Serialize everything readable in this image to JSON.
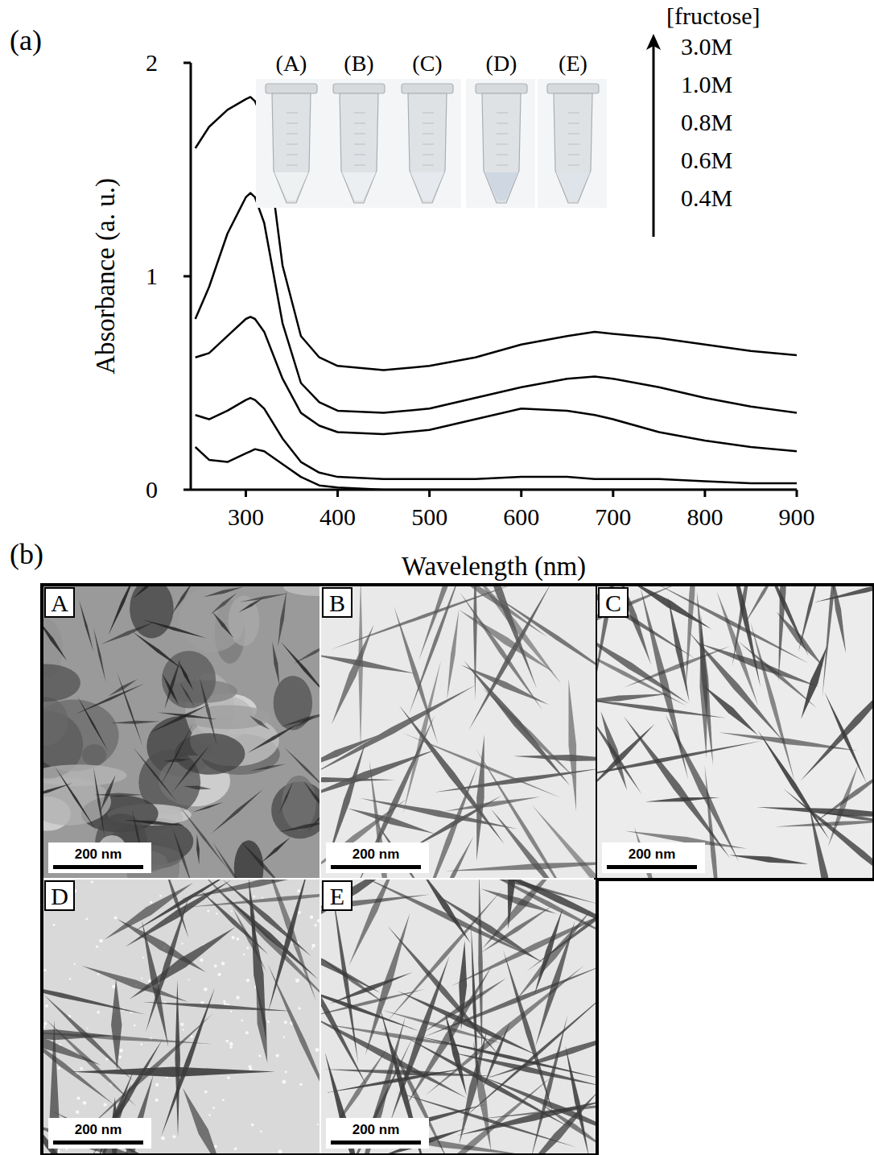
{
  "panel_labels": [
    "(a)",
    "(b)"
  ],
  "chart_data": {
    "type": "line",
    "x_label": "Wavelength (nm)",
    "y_label": "Absorbance (a. u.)",
    "legend_title": "[fructose]",
    "legend": "upper right",
    "grid": false,
    "xlim": [
      240,
      900
    ],
    "ylim": [
      0,
      2
    ],
    "xticks": [
      300,
      400,
      500,
      600,
      700,
      800,
      900
    ],
    "yticks": [
      0,
      1,
      2
    ],
    "x": [
      245,
      260,
      280,
      300,
      305,
      310,
      320,
      340,
      360,
      380,
      400,
      450,
      500,
      550,
      600,
      650,
      680,
      700,
      750,
      800,
      850,
      900
    ],
    "series": [
      {
        "name": "3.0M",
        "color": "#000000",
        "values": [
          1.6,
          1.7,
          1.78,
          1.83,
          1.84,
          1.82,
          1.72,
          1.05,
          0.72,
          0.62,
          0.58,
          0.56,
          0.58,
          0.62,
          0.68,
          0.72,
          0.74,
          0.73,
          0.71,
          0.68,
          0.65,
          0.63
        ]
      },
      {
        "name": "1.0M",
        "color": "#000000",
        "values": [
          0.8,
          0.95,
          1.2,
          1.37,
          1.39,
          1.37,
          1.25,
          0.78,
          0.5,
          0.41,
          0.37,
          0.36,
          0.38,
          0.43,
          0.48,
          0.52,
          0.53,
          0.52,
          0.48,
          0.43,
          0.39,
          0.36
        ]
      },
      {
        "name": "0.8M",
        "color": "#000000",
        "values": [
          0.62,
          0.64,
          0.72,
          0.8,
          0.81,
          0.8,
          0.74,
          0.52,
          0.36,
          0.3,
          0.27,
          0.26,
          0.28,
          0.33,
          0.38,
          0.37,
          0.35,
          0.33,
          0.27,
          0.23,
          0.2,
          0.18
        ]
      },
      {
        "name": "0.6M",
        "color": "#000000",
        "values": [
          0.35,
          0.33,
          0.37,
          0.42,
          0.43,
          0.42,
          0.38,
          0.24,
          0.13,
          0.08,
          0.06,
          0.05,
          0.05,
          0.05,
          0.06,
          0.06,
          0.05,
          0.05,
          0.05,
          0.04,
          0.03,
          0.03
        ]
      },
      {
        "name": "0.4M",
        "color": "#000000",
        "values": [
          0.2,
          0.14,
          0.13,
          0.17,
          0.18,
          0.19,
          0.18,
          0.12,
          0.06,
          0.02,
          0.01,
          0,
          0,
          0,
          0,
          0,
          0,
          0,
          0,
          0,
          0,
          0
        ]
      }
    ]
  },
  "inset": {
    "tube_labels": [
      "(A)",
      "(B)",
      "(C)",
      "(D)",
      "(E)"
    ]
  },
  "tem_images": [
    {
      "label": "A",
      "scale_bar": "200 nm"
    },
    {
      "label": "B",
      "scale_bar": "200 nm"
    },
    {
      "label": "C",
      "scale_bar": "200 nm"
    },
    {
      "label": "D",
      "scale_bar": "200 nm"
    },
    {
      "label": "E",
      "scale_bar": "200 nm"
    }
  ]
}
